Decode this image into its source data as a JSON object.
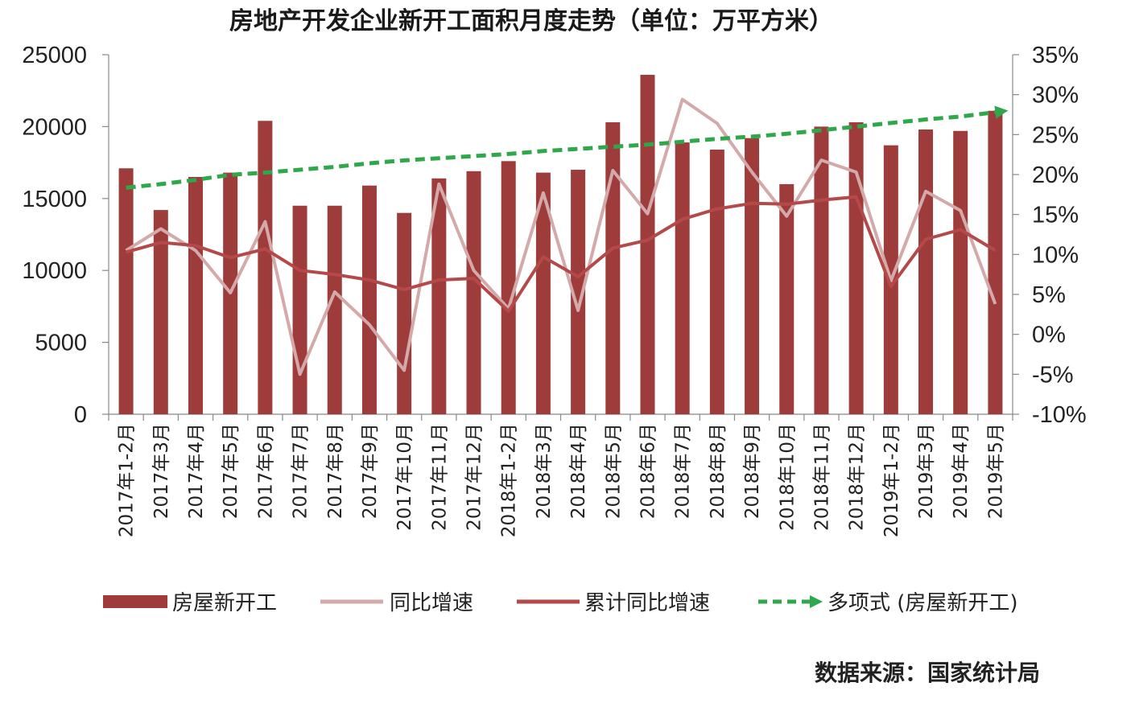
{
  "chart_data": {
    "type": "bar",
    "title": "房地产开发企业新开工面积月度走势（单位：万平方米）",
    "categories": [
      "2017年1-2月",
      "2017年3月",
      "2017年4月",
      "2017年5月",
      "2017年6月",
      "2017年7月",
      "2017年8月",
      "2017年9月",
      "2017年10月",
      "2017年11月",
      "2017年12月",
      "2018年1-2月",
      "2018年3月",
      "2018年4月",
      "2018年5月",
      "2018年6月",
      "2018年7月",
      "2018年8月",
      "2018年9月",
      "2018年10月",
      "2018年11月",
      "2018年12月",
      "2019年1-2月",
      "2019年3月",
      "2019年4月",
      "2019年5月"
    ],
    "y_left": {
      "ylim": [
        0,
        25000
      ],
      "ticks": [
        "0",
        "5000",
        "10000",
        "15000",
        "20000",
        "25000"
      ]
    },
    "y_right": {
      "ylim": [
        -10,
        35
      ],
      "ticks": [
        "-10%",
        "-5%",
        "0%",
        "5%",
        "10%",
        "15%",
        "20%",
        "25%",
        "30%",
        "35%"
      ]
    },
    "series": [
      {
        "name": "房屋新开工",
        "type": "bar",
        "axis": "left",
        "color": "#9e3c3c",
        "values": [
          17100,
          14200,
          16500,
          16800,
          20400,
          14500,
          14500,
          15900,
          14000,
          16400,
          16900,
          17600,
          16800,
          17000,
          20300,
          23600,
          18900,
          18400,
          19200,
          16000,
          20000,
          20300,
          18700,
          19800,
          19700,
          21100
        ]
      },
      {
        "name": "同比增速",
        "type": "line",
        "axis": "right",
        "color": "#d4a9a9",
        "values": [
          10.5,
          13.2,
          10.5,
          5.2,
          14.1,
          -5.0,
          5.3,
          1.2,
          -4.5,
          18.8,
          8.0,
          3.2,
          17.7,
          3.0,
          20.5,
          15.1,
          29.4,
          26.4,
          20.3,
          14.8,
          21.8,
          20.3,
          6.7,
          17.9,
          15.5,
          3.8
        ]
      },
      {
        "name": "累计同比增速",
        "type": "line",
        "axis": "right",
        "color": "#b5494a",
        "values": [
          10.3,
          11.5,
          11.1,
          9.6,
          10.7,
          8.0,
          7.5,
          6.8,
          5.6,
          6.8,
          7.0,
          2.9,
          9.7,
          7.2,
          10.8,
          11.8,
          14.4,
          15.7,
          16.4,
          16.3,
          16.8,
          17.2,
          6.0,
          11.9,
          13.1,
          10.5
        ]
      },
      {
        "name": "多项式 (房屋新开工)",
        "type": "trendline",
        "axis": "left",
        "color": "#2ea84a",
        "values": [
          15750,
          16000,
          16300,
          16650,
          16800,
          17000,
          17200,
          17450,
          17650,
          17800,
          17950,
          18100,
          18300,
          18450,
          18600,
          18750,
          18950,
          19150,
          19300,
          19500,
          19750,
          20000,
          20250,
          20500,
          20700,
          21000
        ]
      }
    ],
    "legend": {
      "position": "bottom"
    },
    "source": "数据来源：国家统计局"
  }
}
